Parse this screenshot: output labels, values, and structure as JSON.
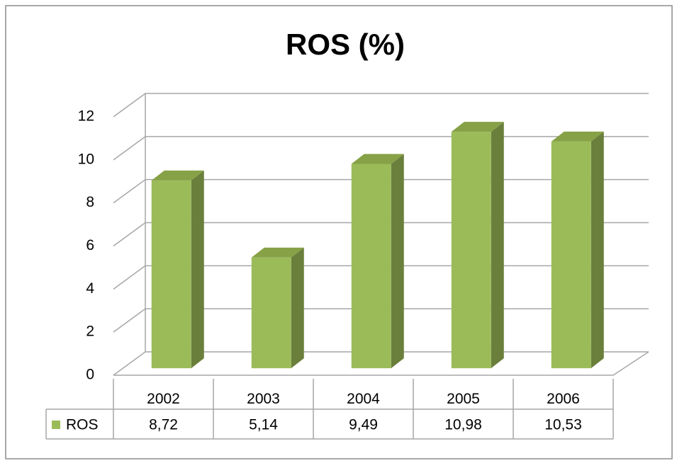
{
  "chart_data": {
    "type": "bar3d",
    "title": "ROS (%)",
    "categories": [
      "2002",
      "2003",
      "2004",
      "2005",
      "2006"
    ],
    "series": [
      {
        "name": "ROS",
        "color": "#9bbb59",
        "values": [
          8.72,
          5.14,
          9.49,
          10.98,
          10.53
        ],
        "value_labels": [
          "8,72",
          "5,14",
          "9,49",
          "10,98",
          "10,53"
        ]
      }
    ],
    "ylim": [
      0,
      12
    ],
    "yticks": [
      0,
      2,
      4,
      6,
      8,
      10,
      12
    ],
    "grid": true,
    "data_table": true
  }
}
